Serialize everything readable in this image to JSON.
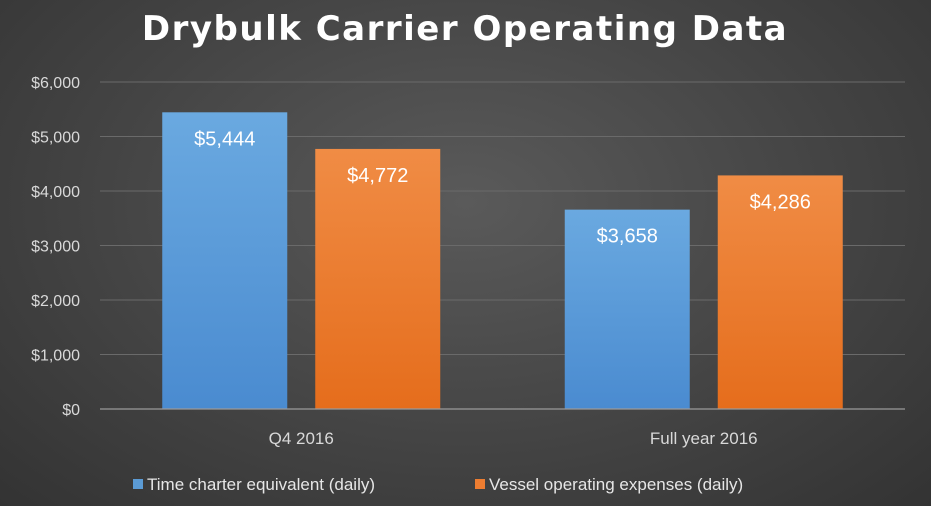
{
  "chart_data": {
    "type": "bar",
    "title": "Drybulk Carrier Operating Data",
    "categories": [
      "Q4 2016",
      "Full year 2016"
    ],
    "series": [
      {
        "name": "Time charter equivalent (daily)",
        "values": [
          5444,
          3658
        ],
        "labels": [
          "$5,444",
          "$3,658"
        ],
        "color": "#5b9bd5"
      },
      {
        "name": "Vessel operating expenses (daily)",
        "values": [
          4772,
          4286
        ],
        "labels": [
          "$4,772",
          "$4,286"
        ],
        "color": "#ed7d31"
      }
    ],
    "yticks": [
      {
        "value": 0,
        "label": "$0"
      },
      {
        "value": 1000,
        "label": "$1,000"
      },
      {
        "value": 2000,
        "label": "$2,000"
      },
      {
        "value": 3000,
        "label": "$3,000"
      },
      {
        "value": 4000,
        "label": "$4,000"
      },
      {
        "value": 5000,
        "label": "$5,000"
      },
      {
        "value": 6000,
        "label": "$6,000"
      }
    ],
    "ylim": [
      0,
      6000
    ],
    "xlabel": "",
    "ylabel": "",
    "grid": true,
    "legend": "bottom"
  }
}
